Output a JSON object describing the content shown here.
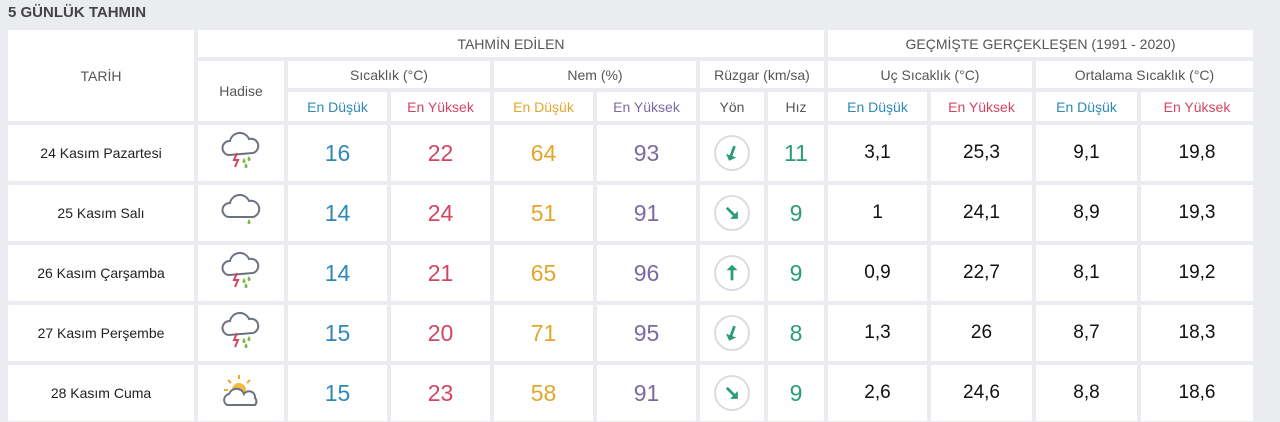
{
  "title": "5 GÜNLÜK TAHMIN",
  "headers": {
    "date": "TARİH",
    "forecast": "TAHMİN EDİLEN",
    "historical": "GEÇMİŞTE GERÇEKLEŞEN (1991 - 2020)",
    "event": "Hadise",
    "temperature": "Sıcaklık (°C)",
    "humidity": "Nem (%)",
    "wind": "Rüzgar (km/sa)",
    "extreme_temp": "Uç Sıcaklık (°C)",
    "average_temp": "Ortalama Sıcaklık (°C)",
    "low": "En Düşük",
    "high": "En Yüksek",
    "direction": "Yön",
    "speed": "Hız"
  },
  "colors": {
    "low": "#2e88b8",
    "high": "#d44561",
    "humidity_low": "#e3a62c",
    "humidity_high": "#7b6aa2",
    "wind": "#2a9d78"
  },
  "rows": [
    {
      "date": "24 Kasım Pazartesi",
      "icon": "thunderstorm-rain-icon",
      "temp_low": "16",
      "temp_high": "22",
      "hum_low": "64",
      "hum_high": "93",
      "wind_dir_deg": 200,
      "wind_speed": "11",
      "ext_low": "3,1",
      "ext_high": "25,3",
      "avg_low": "9,1",
      "avg_high": "19,8"
    },
    {
      "date": "25 Kasım Salı",
      "icon": "cloud-rain-icon",
      "temp_low": "14",
      "temp_high": "24",
      "hum_low": "51",
      "hum_high": "91",
      "wind_dir_deg": 135,
      "wind_speed": "9",
      "ext_low": "1",
      "ext_high": "24,1",
      "avg_low": "8,9",
      "avg_high": "19,3"
    },
    {
      "date": "26 Kasım Çarşamba",
      "icon": "thunderstorm-rain-icon",
      "temp_low": "14",
      "temp_high": "21",
      "hum_low": "65",
      "hum_high": "96",
      "wind_dir_deg": 0,
      "wind_speed": "9",
      "ext_low": "0,9",
      "ext_high": "22,7",
      "avg_low": "8,1",
      "avg_high": "19,2"
    },
    {
      "date": "27 Kasım Perşembe",
      "icon": "thunderstorm-rain-icon",
      "temp_low": "15",
      "temp_high": "20",
      "hum_low": "71",
      "hum_high": "95",
      "wind_dir_deg": 200,
      "wind_speed": "8",
      "ext_low": "1,3",
      "ext_high": "26",
      "avg_low": "8,7",
      "avg_high": "18,3"
    },
    {
      "date": "28 Kasım Cuma",
      "icon": "partly-sunny-icon",
      "temp_low": "15",
      "temp_high": "23",
      "hum_low": "58",
      "hum_high": "91",
      "wind_dir_deg": 135,
      "wind_speed": "9",
      "ext_low": "2,6",
      "ext_high": "24,6",
      "avg_low": "8,8",
      "avg_high": "18,6"
    }
  ]
}
